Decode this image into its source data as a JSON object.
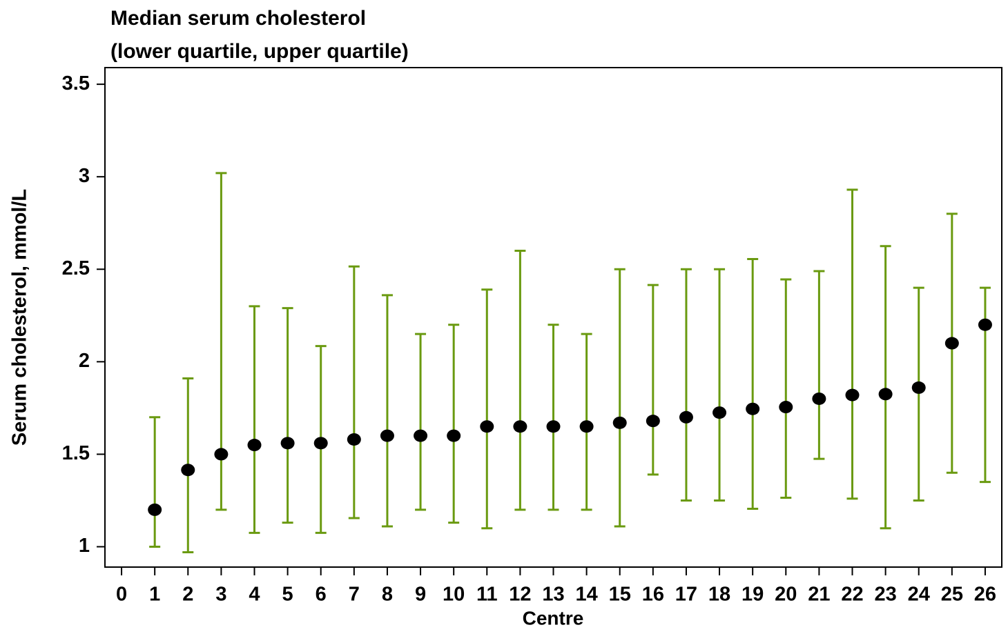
{
  "chart_data": {
    "type": "errorbar",
    "title": "Median serum cholesterol",
    "subtitle": "(lower quartile, upper quartile)",
    "xlabel": "Centre",
    "ylabel": "Serum cholesterol, mmol/L",
    "x": [
      1,
      2,
      3,
      4,
      5,
      6,
      7,
      8,
      9,
      10,
      11,
      12,
      13,
      14,
      15,
      16,
      17,
      18,
      19,
      20,
      21,
      22,
      23,
      24,
      25,
      26
    ],
    "series": [
      {
        "values": [
          1.2,
          1.415,
          1.5,
          1.55,
          1.56,
          1.56,
          1.58,
          1.6,
          1.6,
          1.6,
          1.65,
          1.65,
          1.65,
          1.65,
          1.67,
          1.68,
          1.7,
          1.725,
          1.745,
          1.755,
          1.8,
          1.82,
          1.825,
          1.86,
          2.1,
          2.2
        ],
        "lower": [
          1.0,
          0.97,
          1.2,
          1.075,
          1.13,
          1.075,
          1.155,
          1.11,
          1.2,
          1.13,
          1.1,
          1.2,
          1.2,
          1.2,
          1.11,
          1.39,
          1.25,
          1.25,
          1.205,
          1.265,
          1.475,
          1.26,
          1.1,
          1.25,
          1.4,
          1.35
        ],
        "upper": [
          1.7,
          1.91,
          3.02,
          2.3,
          2.29,
          2.085,
          2.515,
          2.36,
          2.15,
          2.2,
          2.39,
          2.6,
          2.2,
          2.15,
          2.5,
          2.415,
          2.5,
          2.5,
          2.555,
          2.445,
          2.49,
          2.93,
          2.625,
          2.4,
          2.8,
          2.4
        ],
        "color": "#000000",
        "error_color": "#6a9a10"
      }
    ],
    "xlim": [
      -0.5,
      26.5
    ],
    "xticks": [
      0,
      1,
      2,
      3,
      4,
      5,
      6,
      7,
      8,
      9,
      10,
      11,
      12,
      13,
      14,
      15,
      16,
      17,
      18,
      19,
      20,
      21,
      22,
      23,
      24,
      25,
      26
    ],
    "ylim": [
      0.89,
      3.59
    ],
    "yticks": [
      1,
      1.5,
      2,
      2.5,
      3,
      3.5
    ]
  }
}
